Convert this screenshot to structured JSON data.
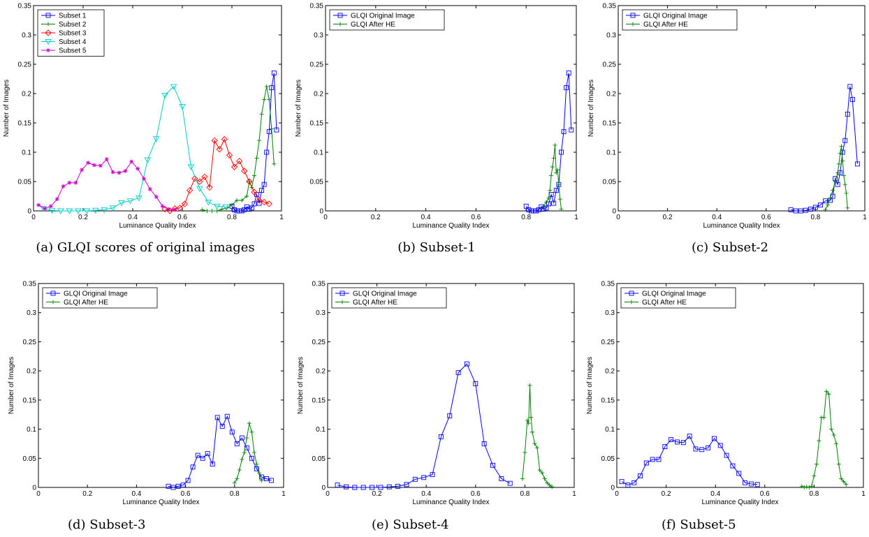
{
  "chart_data": [
    {
      "type": "line",
      "caption": "(a) GLQI scores of original images",
      "xlabel": "Luminance Quality Index",
      "ylabel": "Number of Images",
      "xlim": [
        0,
        1
      ],
      "ylim": [
        0,
        0.35
      ],
      "xticks": [
        "0",
        "0.2",
        "0.4",
        "0.6",
        "0.8",
        "1"
      ],
      "yticks": [
        "0",
        "0.05",
        "0.1",
        "0.15",
        "0.2",
        "0.25",
        "0.3",
        "0.35"
      ],
      "legend": "top-left",
      "series": [
        {
          "name": "Subset 1",
          "color": "#0000ff",
          "marker": "square",
          "x": [
            0.8,
            0.81,
            0.82,
            0.83,
            0.84,
            0.85,
            0.86,
            0.87,
            0.88,
            0.89,
            0.9,
            0.91,
            0.92,
            0.93,
            0.94,
            0.95,
            0.96,
            0.97,
            0.98
          ],
          "y": [
            0.008,
            0.002,
            0.0,
            0.0,
            0.0,
            0.002,
            0.007,
            0.003,
            0.005,
            0.012,
            0.028,
            0.013,
            0.035,
            0.045,
            0.1,
            0.135,
            0.21,
            0.235,
            0.138
          ]
        },
        {
          "name": "Subset 2",
          "color": "#008000",
          "marker": "plus",
          "x": [
            0.68,
            0.7,
            0.72,
            0.74,
            0.76,
            0.78,
            0.8,
            0.82,
            0.84,
            0.86,
            0.87,
            0.88,
            0.89,
            0.9,
            0.91,
            0.92,
            0.93,
            0.94,
            0.95,
            0.96,
            0.97
          ],
          "y": [
            0.002,
            0.0,
            0.0,
            0.0,
            0.003,
            0.005,
            0.01,
            0.018,
            0.018,
            0.025,
            0.05,
            0.04,
            0.06,
            0.09,
            0.12,
            0.165,
            0.19,
            0.212,
            0.19,
            0.14,
            0.08
          ]
        },
        {
          "name": "Subset 3",
          "color": "#ff0000",
          "marker": "diamond",
          "x": [
            0.53,
            0.55,
            0.57,
            0.59,
            0.61,
            0.63,
            0.65,
            0.67,
            0.69,
            0.71,
            0.73,
            0.75,
            0.77,
            0.79,
            0.81,
            0.83,
            0.85,
            0.87,
            0.89,
            0.91,
            0.93,
            0.95
          ],
          "y": [
            0.003,
            0.0,
            0.004,
            0.005,
            0.012,
            0.035,
            0.055,
            0.05,
            0.058,
            0.04,
            0.12,
            0.105,
            0.122,
            0.095,
            0.075,
            0.085,
            0.068,
            0.05,
            0.032,
            0.018,
            0.015,
            0.012
          ]
        },
        {
          "name": "Subset 4",
          "color": "#00cccc",
          "marker": "triangle-down",
          "x": [
            0.04,
            0.075,
            0.11,
            0.145,
            0.18,
            0.215,
            0.25,
            0.285,
            0.32,
            0.355,
            0.39,
            0.425,
            0.46,
            0.495,
            0.53,
            0.565,
            0.6,
            0.635,
            0.67,
            0.705,
            0.74,
            0.775
          ],
          "y": [
            0.004,
            0.001,
            0.0,
            0.0,
            0.0,
            0.0,
            0.001,
            0.002,
            0.005,
            0.014,
            0.017,
            0.022,
            0.087,
            0.123,
            0.197,
            0.212,
            0.178,
            0.075,
            0.038,
            0.015,
            0.008,
            0.007
          ]
        },
        {
          "name": "Subset 5",
          "color": "#cc00cc",
          "marker": "star",
          "x": [
            0.02,
            0.045,
            0.07,
            0.095,
            0.12,
            0.145,
            0.17,
            0.195,
            0.22,
            0.245,
            0.27,
            0.295,
            0.32,
            0.345,
            0.37,
            0.395,
            0.42,
            0.445,
            0.47,
            0.495,
            0.52,
            0.545,
            0.57
          ],
          "y": [
            0.01,
            0.004,
            0.008,
            0.02,
            0.042,
            0.048,
            0.048,
            0.07,
            0.082,
            0.078,
            0.077,
            0.088,
            0.066,
            0.065,
            0.068,
            0.084,
            0.072,
            0.055,
            0.037,
            0.024,
            0.008,
            0.003,
            0.002
          ]
        }
      ]
    },
    {
      "type": "line",
      "caption": "(b) Subset-1",
      "xlabel": "Luminance Quality Index",
      "ylabel": "Number of Images",
      "xlim": [
        0,
        1
      ],
      "ylim": [
        0,
        0.35
      ],
      "xticks": [
        "0",
        "0.2",
        "0.4",
        "0.6",
        "0.8",
        "1"
      ],
      "yticks": [
        "0",
        "0.05",
        "0.1",
        "0.15",
        "0.2",
        "0.25",
        "0.3",
        "0.35"
      ],
      "legend": "top-left",
      "series": [
        {
          "name": "GLQI Original Image",
          "color": "#0000ff",
          "marker": "square",
          "x": [
            0.8,
            0.81,
            0.82,
            0.83,
            0.84,
            0.85,
            0.86,
            0.87,
            0.88,
            0.89,
            0.9,
            0.91,
            0.92,
            0.93,
            0.94,
            0.95,
            0.96,
            0.97,
            0.98
          ],
          "y": [
            0.008,
            0.002,
            0.0,
            0.0,
            0.0,
            0.002,
            0.007,
            0.003,
            0.005,
            0.012,
            0.028,
            0.013,
            0.035,
            0.045,
            0.1,
            0.135,
            0.21,
            0.235,
            0.138
          ]
        },
        {
          "name": "GLQI After HE",
          "color": "#008000",
          "marker": "plus",
          "x": [
            0.87,
            0.88,
            0.89,
            0.895,
            0.9,
            0.905,
            0.91,
            0.915,
            0.92,
            0.925,
            0.93,
            0.935,
            0.94
          ],
          "y": [
            0.008,
            0.015,
            0.022,
            0.035,
            0.06,
            0.075,
            0.09,
            0.112,
            0.065,
            0.07,
            0.045,
            0.02,
            0.003
          ]
        }
      ]
    },
    {
      "type": "line",
      "caption": "(c) Subset-2",
      "xlabel": "Luminance Quality Index",
      "ylabel": "Number of Images",
      "xlim": [
        0,
        1
      ],
      "ylim": [
        0,
        0.35
      ],
      "xticks": [
        "0",
        "0.2",
        "0.4",
        "0.6",
        "0.8",
        "1"
      ],
      "yticks": [
        "0",
        "0.05",
        "0.1",
        "0.15",
        "0.2",
        "0.25",
        "0.3",
        "0.35"
      ],
      "legend": "top-left",
      "series": [
        {
          "name": "GLQI Original Image",
          "color": "#0000ff",
          "marker": "square",
          "x": [
            0.7,
            0.72,
            0.74,
            0.76,
            0.78,
            0.8,
            0.82,
            0.84,
            0.86,
            0.87,
            0.88,
            0.89,
            0.9,
            0.91,
            0.92,
            0.93,
            0.94,
            0.95,
            0.97
          ],
          "y": [
            0.002,
            0.0,
            0.0,
            0.001,
            0.003,
            0.006,
            0.01,
            0.017,
            0.018,
            0.025,
            0.055,
            0.045,
            0.065,
            0.1,
            0.12,
            0.165,
            0.212,
            0.19,
            0.08
          ]
        },
        {
          "name": "GLQI After HE",
          "color": "#008000",
          "marker": "plus",
          "x": [
            0.84,
            0.85,
            0.86,
            0.87,
            0.88,
            0.89,
            0.895,
            0.9,
            0.905,
            0.91,
            0.915,
            0.92,
            0.925,
            0.93
          ],
          "y": [
            0.002,
            0.01,
            0.022,
            0.035,
            0.05,
            0.065,
            0.08,
            0.098,
            0.11,
            0.085,
            0.06,
            0.045,
            0.03,
            0.005
          ]
        }
      ]
    },
    {
      "type": "line",
      "caption": "(d) Subset-3",
      "xlabel": "Luminance Quality Index",
      "ylabel": "Number of Images",
      "xlim": [
        0,
        1
      ],
      "ylim": [
        0,
        0.35
      ],
      "xticks": [
        "0",
        "0.2",
        "0.4",
        "0.6",
        "0.8",
        "1"
      ],
      "yticks": [
        "0",
        "0.05",
        "0.1",
        "0.15",
        "0.2",
        "0.25",
        "0.3",
        "0.35"
      ],
      "legend": "top-left",
      "series": [
        {
          "name": "GLQI Original Image",
          "color": "#0000ff",
          "marker": "square",
          "x": [
            0.53,
            0.55,
            0.57,
            0.59,
            0.61,
            0.63,
            0.65,
            0.67,
            0.69,
            0.71,
            0.73,
            0.75,
            0.77,
            0.79,
            0.81,
            0.83,
            0.85,
            0.87,
            0.89,
            0.91,
            0.93,
            0.95
          ],
          "y": [
            0.002,
            0.0,
            0.002,
            0.004,
            0.012,
            0.035,
            0.055,
            0.05,
            0.058,
            0.04,
            0.12,
            0.105,
            0.122,
            0.095,
            0.075,
            0.085,
            0.068,
            0.05,
            0.032,
            0.018,
            0.015,
            0.012
          ]
        },
        {
          "name": "GLQI After HE",
          "color": "#008000",
          "marker": "plus",
          "x": [
            0.8,
            0.81,
            0.82,
            0.83,
            0.84,
            0.85,
            0.86,
            0.87,
            0.88,
            0.89,
            0.9,
            0.91
          ],
          "y": [
            0.008,
            0.015,
            0.03,
            0.048,
            0.06,
            0.085,
            0.11,
            0.095,
            0.06,
            0.04,
            0.025,
            0.012
          ]
        }
      ]
    },
    {
      "type": "line",
      "caption": "(e) Subset-4",
      "xlabel": "Luminance Quality Index",
      "ylabel": "Number of Images",
      "xlim": [
        0,
        1
      ],
      "ylim": [
        0,
        0.35
      ],
      "xticks": [
        "0",
        "0.2",
        "0.4",
        "0.6",
        "0.8",
        "1"
      ],
      "yticks": [
        "0",
        "0.05",
        "0.1",
        "0.15",
        "0.2",
        "0.25",
        "0.3",
        "0.35"
      ],
      "legend": "top-left",
      "series": [
        {
          "name": "GLQI Original Image",
          "color": "#0000ff",
          "marker": "square",
          "x": [
            0.04,
            0.075,
            0.11,
            0.145,
            0.18,
            0.215,
            0.25,
            0.285,
            0.32,
            0.355,
            0.39,
            0.425,
            0.46,
            0.495,
            0.53,
            0.565,
            0.6,
            0.635,
            0.67,
            0.705,
            0.74
          ],
          "y": [
            0.004,
            0.001,
            0.0,
            0.0,
            0.0,
            0.0,
            0.001,
            0.002,
            0.005,
            0.014,
            0.017,
            0.022,
            0.087,
            0.123,
            0.197,
            0.212,
            0.178,
            0.075,
            0.038,
            0.015,
            0.007
          ]
        },
        {
          "name": "GLQI After HE",
          "color": "#008000",
          "marker": "plus",
          "x": [
            0.79,
            0.8,
            0.81,
            0.815,
            0.82,
            0.825,
            0.83,
            0.84,
            0.85,
            0.86,
            0.87,
            0.88,
            0.89,
            0.9,
            0.91
          ],
          "y": [
            0.015,
            0.06,
            0.115,
            0.11,
            0.175,
            0.12,
            0.095,
            0.075,
            0.068,
            0.03,
            0.025,
            0.015,
            0.008,
            0.004,
            0.001
          ]
        }
      ]
    },
    {
      "type": "line",
      "caption": "(f) Subset-5",
      "xlabel": "Luminance Quality Index",
      "ylabel": "Number of Images",
      "xlim": [
        0,
        1
      ],
      "ylim": [
        0,
        0.35
      ],
      "xticks": [
        "0",
        "0.2",
        "0.4",
        "0.6",
        "0.8",
        "1"
      ],
      "yticks": [
        "0",
        "0.05",
        "0.1",
        "0.15",
        "0.2",
        "0.25",
        "0.3",
        "0.35"
      ],
      "legend": "top-left",
      "series": [
        {
          "name": "GLQI Original Image",
          "color": "#0000ff",
          "marker": "square",
          "x": [
            0.02,
            0.045,
            0.07,
            0.095,
            0.12,
            0.145,
            0.17,
            0.195,
            0.22,
            0.245,
            0.27,
            0.295,
            0.32,
            0.345,
            0.37,
            0.395,
            0.42,
            0.445,
            0.47,
            0.495,
            0.52,
            0.545,
            0.57
          ],
          "y": [
            0.01,
            0.004,
            0.008,
            0.02,
            0.042,
            0.048,
            0.048,
            0.07,
            0.082,
            0.078,
            0.077,
            0.088,
            0.066,
            0.065,
            0.068,
            0.084,
            0.072,
            0.055,
            0.037,
            0.024,
            0.008,
            0.006,
            0.005
          ]
        },
        {
          "name": "GLQI After HE",
          "color": "#008000",
          "marker": "plus",
          "x": [
            0.75,
            0.76,
            0.77,
            0.78,
            0.79,
            0.8,
            0.81,
            0.82,
            0.83,
            0.84,
            0.85,
            0.86,
            0.87,
            0.88,
            0.89,
            0.9,
            0.91,
            0.92,
            0.93
          ],
          "y": [
            0.002,
            0.0,
            0.001,
            0.0,
            0.002,
            0.02,
            0.04,
            0.08,
            0.12,
            0.12,
            0.165,
            0.16,
            0.1,
            0.09,
            0.075,
            0.04,
            0.015,
            0.01,
            0.005
          ]
        }
      ]
    }
  ]
}
